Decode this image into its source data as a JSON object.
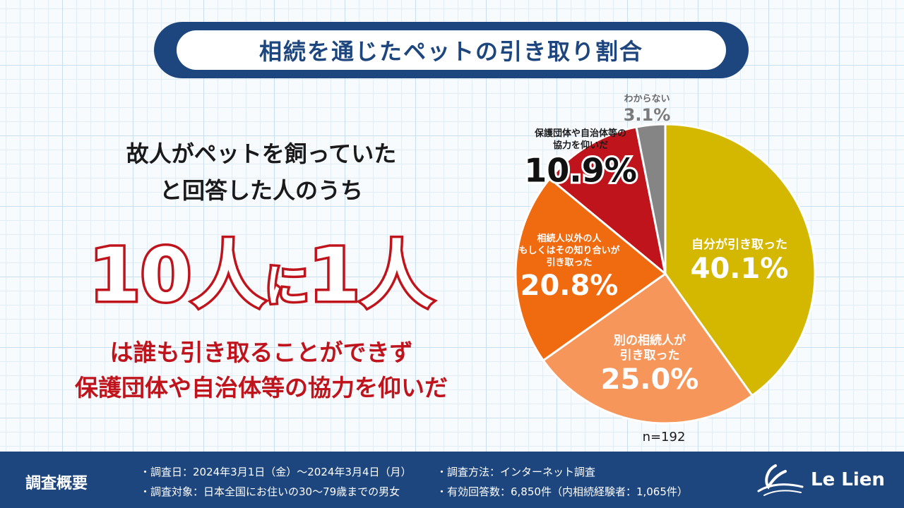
{
  "title": "相続を通じたペットの引き取り割合",
  "lead": {
    "line1": "故人がペットを飼っていた",
    "line2": "と回答した人のうち"
  },
  "headline": {
    "num1": "10",
    "word1": "人",
    "particle": "に",
    "num2": "1",
    "word2": "人"
  },
  "tail": {
    "line1": "は誰も引き取ることができず",
    "line2": "保護団体や自治体等の協力を仰いだ"
  },
  "chart_data": {
    "type": "pie",
    "unit": "%",
    "sample": "n=192",
    "slices": [
      {
        "label_lines": [
          "自分が引き取った"
        ],
        "value": 40.1,
        "display": "40.1%",
        "color": "#d4b800"
      },
      {
        "label_lines": [
          "別の相続人が",
          "引き取った"
        ],
        "value": 25.0,
        "display": "25.0%",
        "color": "#f7965a"
      },
      {
        "label_lines": [
          "相続人以外の人",
          "もしくはその知り合いが",
          "引き取った"
        ],
        "value": 20.8,
        "display": "20.8%",
        "color": "#f06a10"
      },
      {
        "label_lines": [
          "保護団体や自治体等の",
          "協力を仰いだ"
        ],
        "value": 10.9,
        "display": "10.9%",
        "color": "#c0141c"
      },
      {
        "label_lines": [
          "わからない"
        ],
        "value": 3.1,
        "display": "3.1%",
        "color": "#858585"
      }
    ]
  },
  "footer": {
    "label": "調査概要",
    "date": "・調査日：2024年3月1日（金）〜2024年3月4日（月）",
    "method": "・調査方法：インターネット調査",
    "target": "・調査対象：日本全国にお住いの30〜79歳までの男女",
    "responses": "・有効回答数：6,850件（内相続経験者：1,065件）"
  },
  "logo": {
    "text": "Le Lien"
  }
}
